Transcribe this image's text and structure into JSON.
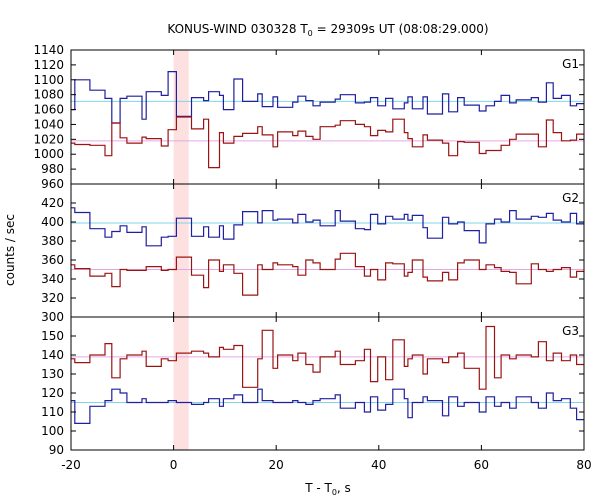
{
  "chart_data": {
    "type": "line",
    "title": {
      "prefix": "KONUS-WIND 030328 T",
      "subscript": "0",
      "suffix": " = 29309s UT (08:08:29.000)"
    },
    "xlabel": {
      "main": "T - T",
      "subscript": "0",
      "suffix": ", s"
    },
    "ylabel": "counts / sec",
    "xlim": [
      -20,
      80
    ],
    "xticks": [
      -20,
      0,
      20,
      40,
      60,
      80
    ],
    "highlight": {
      "x_start": 0.0,
      "x_end": 2.944
    },
    "bin_edges": [
      -20,
      -19.264,
      -16.32,
      -13.376,
      -12.048,
      -10.432,
      -9.104,
      -6.16,
      -5.344,
      -2.4,
      -1.072,
      0.544,
      3.488,
      5.856,
      6.816,
      8.944,
      9.712,
      11.76,
      13.456,
      16.4,
      17.264,
      19.376,
      20.272,
      23.216,
      24.224,
      25.776,
      27.168,
      28.56,
      31.504,
      32.496,
      35.44,
      37.184,
      38.384,
      39.776,
      41.328,
      42.72,
      44.976,
      45.664,
      46.528,
      48.608,
      49.472,
      52.416,
      53.632,
      55.36,
      56.656,
      59.6,
      60.896,
      62.544,
      63.84,
      65.488,
      66.784,
      69.728,
      71.104,
      72.672,
      74.0,
      75.616,
      77.328,
      78.56,
      80
    ],
    "panels": [
      {
        "label": "G1",
        "ylim": [
          960,
          1140
        ],
        "yticks": [
          960,
          980,
          1000,
          1020,
          1040,
          1060,
          1080,
          1100,
          1120,
          1140
        ],
        "series": [
          {
            "color": "#1f1f9f",
            "background_color": "#7fd4ea",
            "background": 1071,
            "values": [
              1060,
              1100,
              1086,
              1075,
              1042,
              1075,
              1078,
              1047,
              1084,
              1079,
              1111,
              1051,
              1076,
              1072,
              1084,
              1079,
              1060,
              1101,
              1071,
              1081,
              1064,
              1077,
              1063,
              1070,
              1078,
              1072,
              1065,
              1070,
              1074,
              1080,
              1069,
              1070,
              1076,
              1065,
              1075,
              1061,
              1069,
              1077,
              1061,
              1077,
              1054,
              1081,
              1057,
              1076,
              1066,
              1058,
              1065,
              1071,
              1079,
              1069,
              1073,
              1076,
              1070,
              1096,
              1075,
              1079,
              1065,
              1068
            ]
          },
          {
            "color": "#9b1414",
            "background_color": "#e6a6e6",
            "background": 1018,
            "values": [
              1015,
              1013,
              1012,
              998,
              1042,
              1022,
              1015,
              1023,
              1021,
              1011,
              1033,
              1050,
              1034,
              1047,
              982,
              1029,
              1015,
              1024,
              1028,
              1037,
              1026,
              1010,
              1030,
              1025,
              1031,
              1024,
              1020,
              1037,
              1039,
              1045,
              1040,
              1037,
              1025,
              1032,
              1030,
              1047,
              1029,
              1021,
              1010,
              1026,
              1019,
              1015,
              998,
              1017,
              1016,
              1001,
              1005,
              1005,
              1012,
              1020,
              1027,
              1027,
              1010,
              1046,
              1029,
              1018,
              1019,
              1027
            ]
          }
        ]
      },
      {
        "label": "G2",
        "ylim": [
          300,
          440
        ],
        "yticks": [
          300,
          320,
          340,
          360,
          380,
          400,
          420
        ],
        "series": [
          {
            "color": "#1f1f9f",
            "background_color": "#7fd4ea",
            "background": 399,
            "values": [
              415,
              410,
              393,
              384,
              390,
              396,
              389,
              395,
              375,
              384,
              385,
              404,
              385,
              395,
              384,
              396,
              382,
              397,
              411,
              399,
              412,
              402,
              403,
              399,
              408,
              400,
              402,
              396,
              412,
              401,
              393,
              392,
              408,
              398,
              406,
              403,
              408,
              402,
              407,
              394,
              383,
              405,
              398,
              400,
              391,
              378,
              398,
              403,
              400,
              412,
              403,
              406,
              405,
              409,
              402,
              400,
              409,
              398
            ]
          },
          {
            "color": "#9b1414",
            "background_color": "#e6a6e6",
            "background": 350,
            "values": [
              355,
              351,
              343,
              346,
              332,
              350,
              349,
              349,
              353,
              349,
              350,
              363,
              344,
              331,
              360,
              348,
              355,
              346,
              323,
              355,
              350,
              357,
              355,
              353,
              344,
              360,
              357,
              350,
              361,
              367,
              353,
              343,
              350,
              339,
              357,
              356,
              343,
              347,
              360,
              342,
              338,
              347,
              339,
              357,
              360,
              350,
              355,
              352,
              348,
              347,
              335,
              356,
              350,
              348,
              350,
              352,
              342,
              348
            ]
          }
        ]
      },
      {
        "label": "G3",
        "ylim": [
          90,
          160
        ],
        "yticks": [
          90,
          100,
          110,
          120,
          130,
          140,
          150
        ],
        "series": [
          {
            "color": "#9b1414",
            "background_color": "#e6a6e6",
            "background": 139,
            "values": [
              138,
              136,
              140,
              146,
              128,
              138,
              140,
              142,
              134,
              138,
              137,
              141,
              142,
              141,
              139,
              144,
              143,
              145,
              123,
              138,
              153,
              133,
              140,
              137,
              141,
              135,
              131,
              139,
              142,
              135,
              137,
              143,
              126,
              139,
              127,
              148,
              134,
              138,
              140,
              130,
              138,
              136,
              139,
              141,
              133,
              122,
              155,
              128,
              140,
              138,
              140,
              139,
              147,
              137,
              141,
              137,
              140,
              135
            ]
          },
          {
            "color": "#1f1f9f",
            "background_color": "#7fd4ea",
            "background": 115,
            "values": [
              116,
              104,
              113,
              116,
              122,
              120,
              115,
              117,
              115,
              115,
              116,
              115,
              114,
              115,
              117,
              113,
              117,
              119,
              115,
              122,
              116,
              115,
              115,
              116,
              115,
              114,
              116,
              117,
              119,
              112,
              115,
              110,
              118,
              111,
              114,
              122,
              117,
              107,
              115,
              118,
              116,
              108,
              118,
              113,
              115,
              110,
              118,
              113,
              115,
              112,
              118,
              115,
              112,
              120,
              116,
              117,
              112,
              106
            ]
          }
        ]
      }
    ]
  }
}
